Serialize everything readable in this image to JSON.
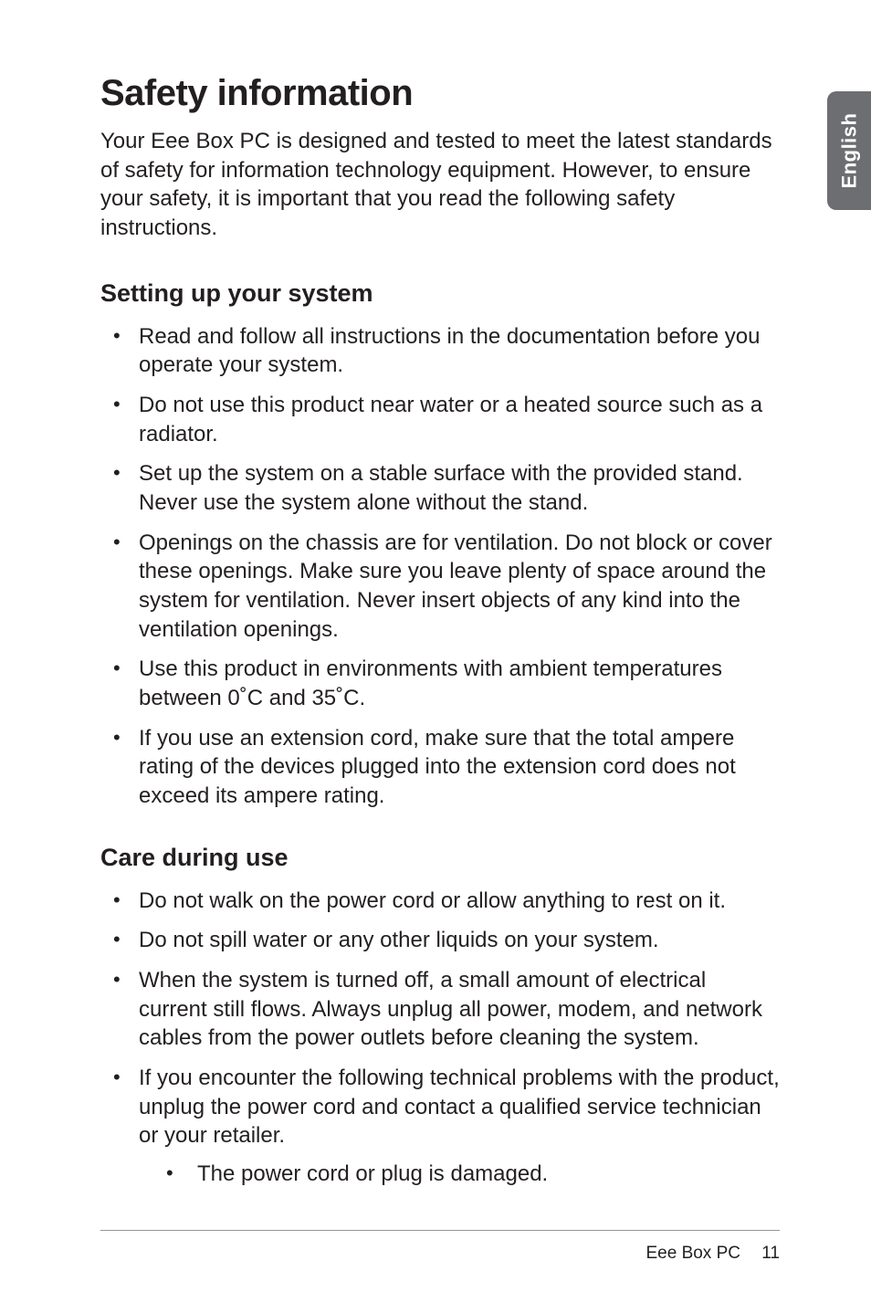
{
  "sideTab": {
    "label": "English"
  },
  "title": "Safety information",
  "intro": "Your Eee Box PC is designed and tested to meet the latest standards of safety for information technology equipment. However, to ensure your safety, it is important that you read the following safety instructions.",
  "sections": [
    {
      "heading": "Setting up your system",
      "items": [
        {
          "text": "Read and follow all instructions in the documentation before you operate your system."
        },
        {
          "text": "Do not use this product near water or a heated source such as a radiator."
        },
        {
          "text": "Set up the system on a stable surface with the provided stand. Never use the system alone without the stand."
        },
        {
          "text": "Openings on the chassis are for ventilation. Do not block or cover these openings. Make sure you leave plenty of space around the system for ventilation. Never insert objects of any kind into the ventilation openings."
        },
        {
          "text": "Use this product in environments with ambient temperatures between 0˚C and 35˚C."
        },
        {
          "text": "If you use an extension cord, make sure that the total ampere rating of the devices plugged into the extension cord does not exceed its ampere rating."
        }
      ]
    },
    {
      "heading": "Care during use",
      "items": [
        {
          "text": "Do not walk on the power cord or allow anything to rest on it."
        },
        {
          "text": "Do not spill water or any other liquids on your system."
        },
        {
          "text": "When the system is turned off, a small amount of electrical current still flows. Always unplug all power, modem, and network cables from the power outlets before cleaning the system."
        },
        {
          "text": "If you encounter the following technical problems with the product, unplug the power cord and contact a qualified service technician or your retailer.",
          "sub": [
            "The power cord or plug is damaged."
          ]
        }
      ]
    }
  ],
  "footer": {
    "product": "Eee Box PC",
    "page": "11"
  },
  "colors": {
    "text": "#231f20",
    "tabBg": "#6d6e71",
    "tabText": "#ffffff",
    "rule": "#939598",
    "background": "#ffffff"
  },
  "typography": {
    "body_fontsize": 24,
    "h1_fontsize": 40,
    "h2_fontsize": 27,
    "footer_fontsize": 19,
    "tab_fontsize": 22
  }
}
